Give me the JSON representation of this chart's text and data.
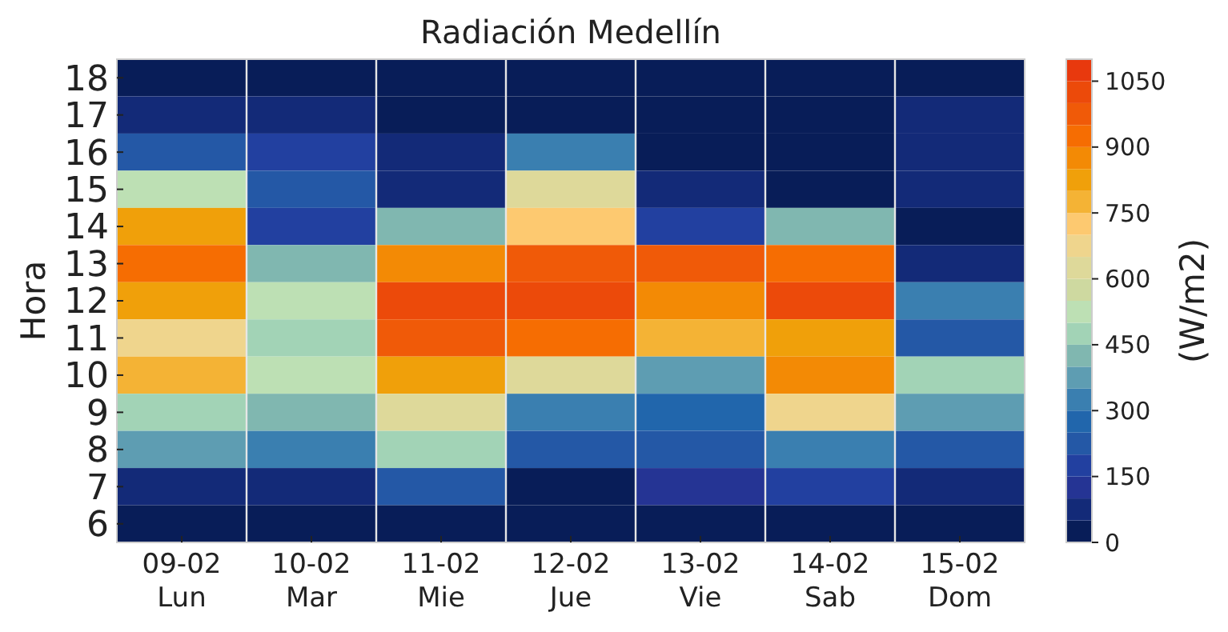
{
  "chart_data": {
    "type": "heatmap",
    "title": "Radiación Medellín",
    "ylabel": "Hora",
    "clabel": "(W/m2)",
    "categories": [
      "09-02\nLun",
      "10-02\nMar",
      "11-02\nMie",
      "12-02\nJue",
      "13-02\nVie",
      "14-02\nSab",
      "15-02\nDom"
    ],
    "y_categories": [
      "18",
      "17",
      "16",
      "15",
      "14",
      "13",
      "12",
      "11",
      "10",
      "9",
      "8",
      "7",
      "6"
    ],
    "cells": [
      [
        25,
        25,
        25,
        25,
        25,
        25,
        25
      ],
      [
        75,
        75,
        25,
        25,
        25,
        25,
        75
      ],
      [
        225,
        175,
        75,
        325,
        25,
        25,
        75
      ],
      [
        525,
        225,
        75,
        625,
        75,
        25,
        75
      ],
      [
        825,
        175,
        425,
        725,
        175,
        425,
        25
      ],
      [
        925,
        425,
        875,
        975,
        975,
        925,
        75
      ],
      [
        825,
        525,
        1025,
        1025,
        875,
        1025,
        325
      ],
      [
        675,
        475,
        975,
        925,
        775,
        825,
        225
      ],
      [
        775,
        525,
        825,
        625,
        375,
        875,
        475
      ],
      [
        475,
        425,
        625,
        325,
        275,
        675,
        375
      ],
      [
        375,
        325,
        475,
        225,
        225,
        325,
        225
      ],
      [
        75,
        75,
        225,
        25,
        125,
        175,
        75
      ],
      [
        25,
        25,
        25,
        25,
        25,
        25,
        25
      ]
    ],
    "clim": [
      0,
      1100
    ],
    "cticks": [
      0,
      150,
      300,
      450,
      600,
      750,
      900,
      1050
    ],
    "colors": [
      "#081d58",
      "#132a78",
      "#253494",
      "#2240a0",
      "#2458a6",
      "#2166ac",
      "#3a7fb0",
      "#5e9db2",
      "#80b7b0",
      "#a2d3b6",
      "#bde0b4",
      "#ced9a0",
      "#ded99a",
      "#efd58d",
      "#fdc970",
      "#f4b335",
      "#f0a00a",
      "#f38a05",
      "#f66d02",
      "#f05a08",
      "#ec4a0a",
      "#e8390e"
    ]
  }
}
